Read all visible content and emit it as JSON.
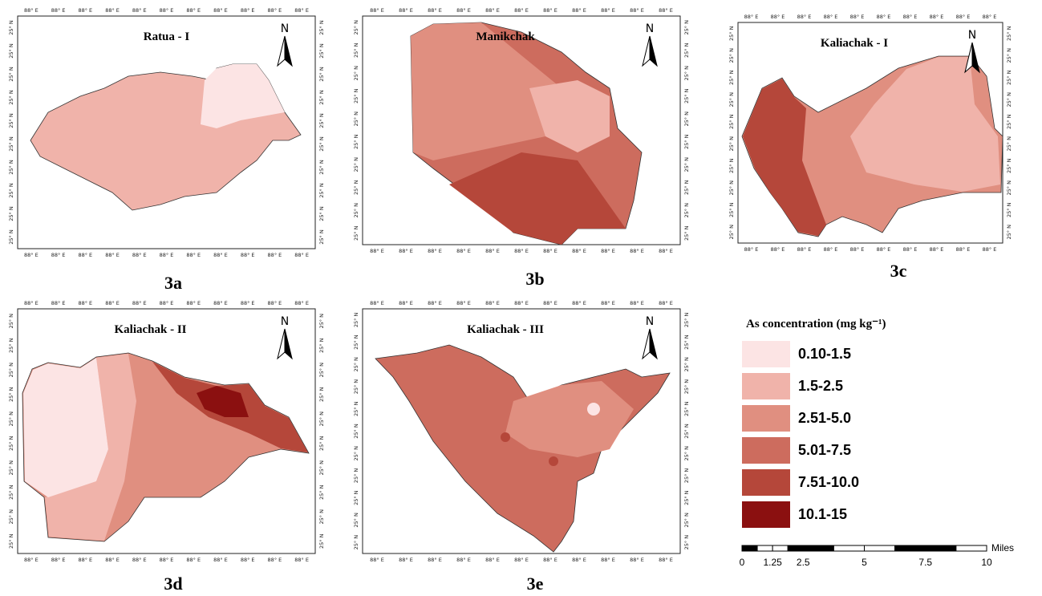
{
  "panels": [
    {
      "title": "Ratua - I",
      "label": "3a",
      "north": "N",
      "lon_labels": [
        "88° E",
        "88° E",
        "88° E",
        "88° E",
        "88° E",
        "88° E",
        "88° E",
        "88° E",
        "88° E",
        "88° E",
        "88° E"
      ],
      "lat_labels": [
        "25° N",
        "25° N",
        "25° N",
        "25° N",
        "25° N",
        "25° N",
        "25° N",
        "25° N",
        "25° N",
        "25° N"
      ]
    },
    {
      "title": "Manikchak",
      "label": "3b",
      "north": "N",
      "lon_labels": [
        "88° E",
        "88° E",
        "88° E",
        "88° E",
        "88° E",
        "88° E",
        "88° E",
        "88° E",
        "88° E",
        "88° E",
        "88° E"
      ],
      "lat_labels": [
        "25° N",
        "25° N",
        "25° N",
        "25° N",
        "25° N",
        "25° N",
        "25° N",
        "25° N",
        "25° N",
        "25° N"
      ]
    },
    {
      "title": "Kaliachak - I",
      "label": "3c",
      "north": "N",
      "lon_labels": [
        "88° E",
        "88° E",
        "88° E",
        "88° E",
        "88° E",
        "88° E",
        "88° E",
        "88° E",
        "88° E",
        "88° E"
      ],
      "lat_labels": [
        "25° N",
        "25° N",
        "25° N",
        "25° N",
        "25° N",
        "25° N",
        "25° N",
        "25° N",
        "25° N",
        "25° N"
      ]
    },
    {
      "title": "Kaliachak - II",
      "label": "3d",
      "north": "N",
      "lon_labels": [
        "88° E",
        "88° E",
        "88° E",
        "88° E",
        "88° E",
        "88° E",
        "88° E",
        "88° E",
        "88° E",
        "88° E",
        "88° E"
      ],
      "lat_labels": [
        "25° N",
        "25° N",
        "25° N",
        "25° N",
        "25° N",
        "25° N",
        "25° N",
        "25° N",
        "25° N",
        "25° N"
      ]
    },
    {
      "title": "Kaliachak - III",
      "label": "3e",
      "north": "N",
      "lon_labels": [
        "88° E",
        "88° E",
        "88° E",
        "88° E",
        "88° E",
        "88° E",
        "88° E",
        "88° E",
        "88° E",
        "88° E",
        "88° E"
      ],
      "lat_labels": [
        "25° N",
        "25° N",
        "25° N",
        "25° N",
        "25° N",
        "25° N",
        "25° N",
        "25° N",
        "25° N",
        "25° N",
        "25° N"
      ]
    }
  ],
  "legend": {
    "title": "As concentration (mg kg⁻¹)",
    "classes": [
      {
        "label": "0.10-1.5",
        "color": "#fce4e4"
      },
      {
        "label": "1.5-2.5",
        "color": "#f0b3aa"
      },
      {
        "label": "2.51-5.0",
        "color": "#e08f80"
      },
      {
        "label": "5.01-7.5",
        "color": "#cd6c5e"
      },
      {
        "label": "7.51-10.0",
        "color": "#b5473a"
      },
      {
        "label": "10.1-15",
        "color": "#8b1010"
      }
    ]
  },
  "scale_bar": {
    "unit": "Miles",
    "xlim": [
      0,
      10
    ],
    "ticks": [
      0,
      1.25,
      2.5,
      5,
      7.5,
      10
    ]
  }
}
